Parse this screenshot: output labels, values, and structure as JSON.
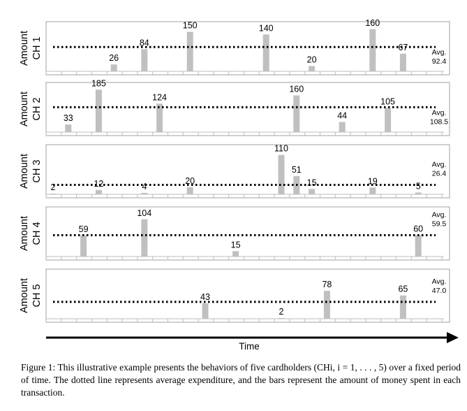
{
  "chart_data": {
    "type": "bar",
    "xlabel": "Time",
    "panels": [
      {
        "ylabel_line1": "Amount",
        "ylabel_line2": "CH 1",
        "avg_label": "Avg.",
        "avg_value": "92.4",
        "avg": 92.4,
        "ymax": 170,
        "bars": [
          {
            "x": 4,
            "value": 26
          },
          {
            "x": 6,
            "value": 84
          },
          {
            "x": 9,
            "value": 150
          },
          {
            "x": 14,
            "value": 140
          },
          {
            "x": 17,
            "value": 20
          },
          {
            "x": 21,
            "value": 160
          },
          {
            "x": 23,
            "value": 67
          }
        ]
      },
      {
        "ylabel_line1": "Amount",
        "ylabel_line2": "CH 2",
        "avg_label": "Avg.",
        "avg_value": "108.5",
        "avg": 108.5,
        "ymax": 195,
        "bars": [
          {
            "x": 1,
            "value": 33
          },
          {
            "x": 3,
            "value": 185
          },
          {
            "x": 7,
            "value": 124
          },
          {
            "x": 16,
            "value": 160
          },
          {
            "x": 19,
            "value": 44
          },
          {
            "x": 22,
            "value": 105
          }
        ]
      },
      {
        "ylabel_line1": "Amount",
        "ylabel_line2": "CH 3",
        "avg_label": "Avg.",
        "avg_value": "26.4",
        "avg": 26.4,
        "ymax": 125,
        "bars": [
          {
            "x": 0,
            "value": 2
          },
          {
            "x": 3,
            "value": 12
          },
          {
            "x": 6,
            "value": 4
          },
          {
            "x": 9,
            "value": 20
          },
          {
            "x": 15,
            "value": 110
          },
          {
            "x": 16,
            "value": 51
          },
          {
            "x": 17,
            "value": 15
          },
          {
            "x": 21,
            "value": 19
          },
          {
            "x": 24,
            "value": 5
          }
        ]
      },
      {
        "ylabel_line1": "Amount",
        "ylabel_line2": "CH 4",
        "avg_label": "Avg.",
        "avg_value": "59.5",
        "avg": 59.5,
        "ymax": 125,
        "bars": [
          {
            "x": 2,
            "value": 59
          },
          {
            "x": 6,
            "value": 104
          },
          {
            "x": 12,
            "value": 15
          },
          {
            "x": 24,
            "value": 60
          }
        ]
      },
      {
        "ylabel_line1": "Amount",
        "ylabel_line2": "CH 5",
        "avg_label": "Avg.",
        "avg_value": "47.0",
        "avg": 47.0,
        "ymax": 125,
        "bars": [
          {
            "x": 10,
            "value": 43
          },
          {
            "x": 15,
            "value": 2
          },
          {
            "x": 18,
            "value": 78
          },
          {
            "x": 23,
            "value": 65
          }
        ]
      }
    ],
    "colors": {
      "bar": "#c0c0c0",
      "frame": "#a0a0a0",
      "avg_line": "#000000",
      "axis": "#000000"
    }
  },
  "caption": "Figure 1: This illustrative example presents the behaviors of five cardholders (CHi, i = 1, . . . , 5) over a fixed period of time. The dotted line represents average expenditure, and the bars represent the amount of money spent in each transaction."
}
